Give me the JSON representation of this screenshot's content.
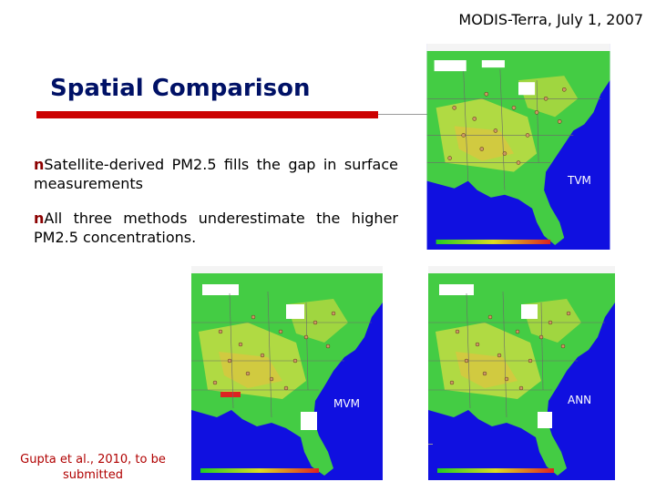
{
  "header": {
    "figure_title": "MODIS-Terra, July 1, 2007"
  },
  "slide": {
    "title": "Spatial Comparison"
  },
  "bullets": [
    {
      "marker": "n",
      "text": "Satellite-derived PM2.5 fills the gap in surface measurements"
    },
    {
      "marker": "n",
      "text": "All three methods underestimate the higher PM2.5 concentrations."
    }
  ],
  "maps": [
    {
      "label": "TVM"
    },
    {
      "label": "MVM"
    },
    {
      "label": "ANN"
    }
  ],
  "citation": "Gupta et al., 2010, to be submitted",
  "colors": {
    "ocean": "#1010e0",
    "land_green": "#44cc44",
    "land_yellow": "#ccdd44",
    "accent_red": "#cc0000",
    "title_blue": "#001166"
  }
}
